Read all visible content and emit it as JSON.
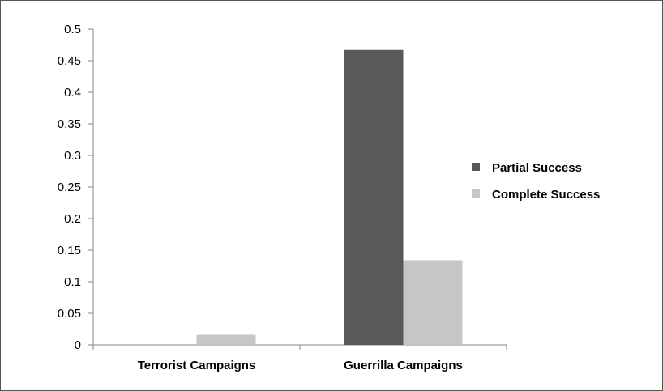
{
  "chart_data": {
    "type": "bar",
    "title": "",
    "xlabel": "",
    "ylabel": "",
    "categories": [
      "Terrorist Campaigns",
      "Guerrilla Campaigns"
    ],
    "series": [
      {
        "name": "Partial Success",
        "values": [
          0,
          0.467
        ],
        "color": "#595959"
      },
      {
        "name": "Complete Success",
        "values": [
          0.016,
          0.134
        ],
        "color": "#c6c6c6"
      }
    ],
    "ylim": [
      0,
      0.5
    ],
    "yticks": [
      "0",
      "0.05",
      "0.1",
      "0.15",
      "0.2",
      "0.25",
      "0.3",
      "0.35",
      "0.4",
      "0.45",
      "0.5"
    ],
    "grid": false,
    "legend_position": "right"
  }
}
